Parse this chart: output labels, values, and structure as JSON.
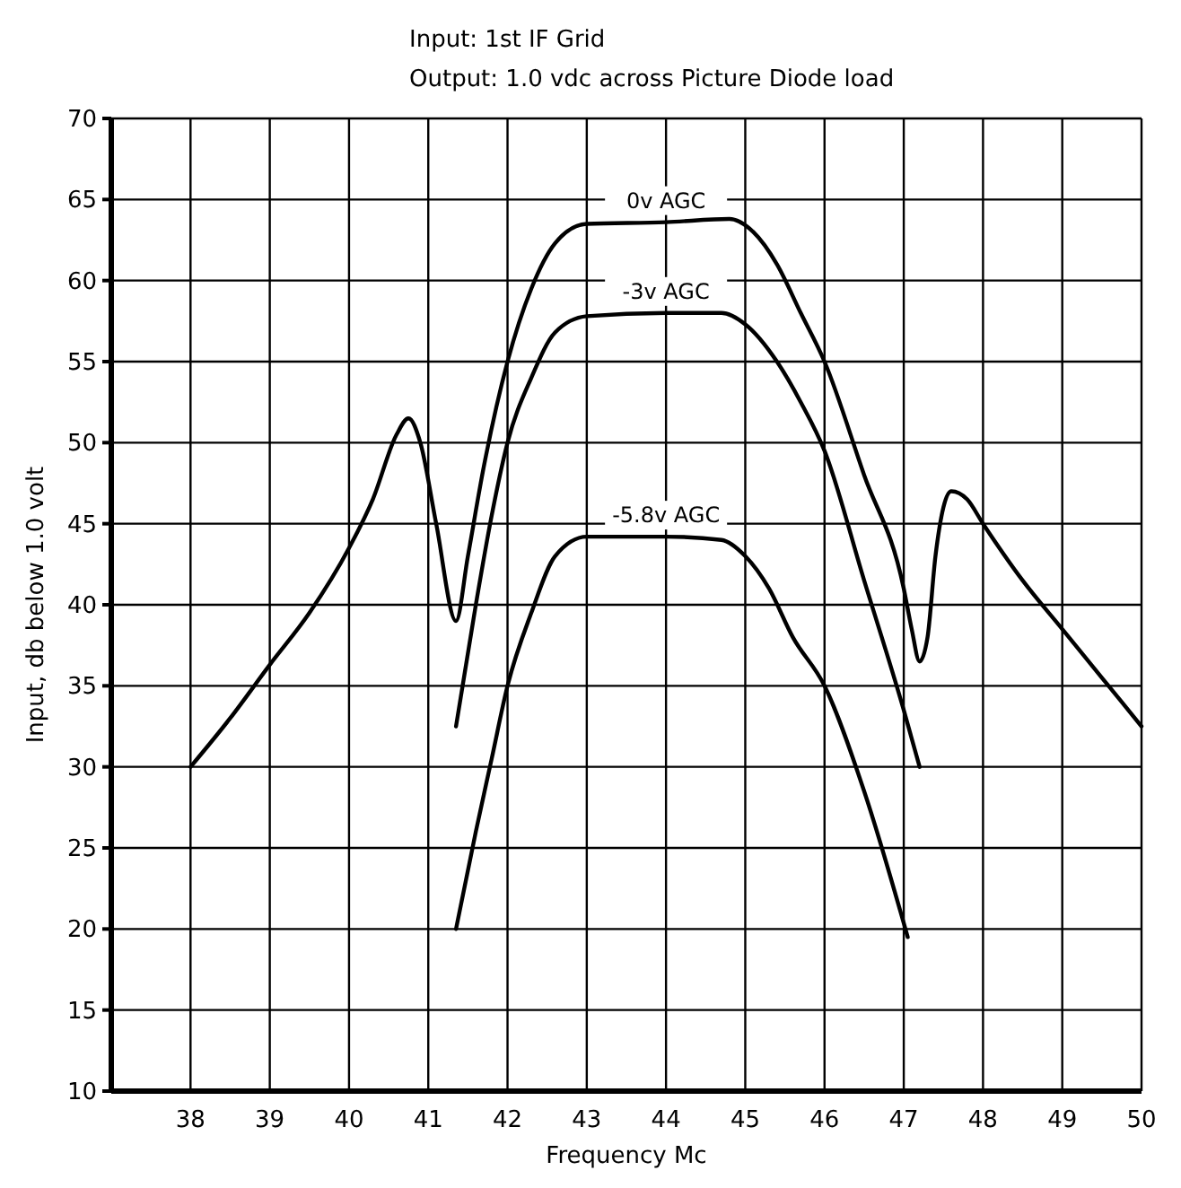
{
  "chart_data": {
    "type": "line",
    "title": "Input: 1st IF Grid",
    "subtitle": "Output: 1.0 vdc across Picture Diode load",
    "xlabel": "Frequency Mc",
    "ylabel": "Input, db below 1.0 volt",
    "xlim": [
      37,
      50
    ],
    "xticks": [
      38,
      39,
      40,
      41,
      42,
      43,
      44,
      45,
      46,
      47,
      48,
      49,
      50
    ],
    "ylim": [
      10,
      70
    ],
    "yticks": [
      10,
      15,
      20,
      25,
      30,
      35,
      40,
      45,
      50,
      55,
      60,
      65,
      70
    ],
    "grid": true,
    "marker": "none",
    "line_style": "solid",
    "series": [
      {
        "name": "0v AGC",
        "color": "#000000",
        "x": [
          38,
          38.5,
          39,
          39.5,
          40,
          40.3,
          40.6,
          40.75,
          40.9,
          41.1,
          41.35,
          41.5,
          41.7,
          42,
          42.3,
          42.6,
          43,
          44,
          44.8,
          45.1,
          45.4,
          45.7,
          46,
          46.5,
          47,
          47.1,
          47.2,
          47.3,
          47.4,
          47.6,
          47.8,
          48,
          48.5,
          49,
          49.5,
          50
        ],
        "values": [
          30,
          33,
          36.3,
          39.5,
          43.5,
          46.5,
          50.5,
          51.5,
          50,
          45,
          39,
          43,
          48.5,
          55,
          59.5,
          62.3,
          63.5,
          63.6,
          63.8,
          63,
          61,
          58,
          55,
          48,
          41,
          38.5,
          36.5,
          38,
          43,
          47,
          46.5,
          45,
          41.5,
          38.5,
          35.5,
          32.5
        ]
      },
      {
        "name": "-3v AGC",
        "color": "#000000",
        "x": [
          41.35,
          41.6,
          41.8,
          42,
          42.3,
          42.6,
          43,
          44,
          44.7,
          45,
          45.4,
          45.7,
          46,
          46.5,
          47,
          47.2
        ],
        "values": [
          32.5,
          40,
          45.5,
          50,
          54,
          56.8,
          57.8,
          58,
          58,
          57.3,
          55,
          52.5,
          49.5,
          41.5,
          33.5,
          30
        ]
      },
      {
        "name": "-5.8v AGC",
        "color": "#000000",
        "x": [
          41.35,
          41.6,
          41.8,
          42,
          42.3,
          42.6,
          43,
          44,
          44.7,
          45,
          45.3,
          45.6,
          46,
          46.5,
          47.05
        ],
        "values": [
          20,
          26,
          30.5,
          35,
          39.5,
          43,
          44.2,
          44.2,
          44,
          43,
          41,
          38,
          35,
          28.5,
          19.5
        ]
      }
    ]
  }
}
